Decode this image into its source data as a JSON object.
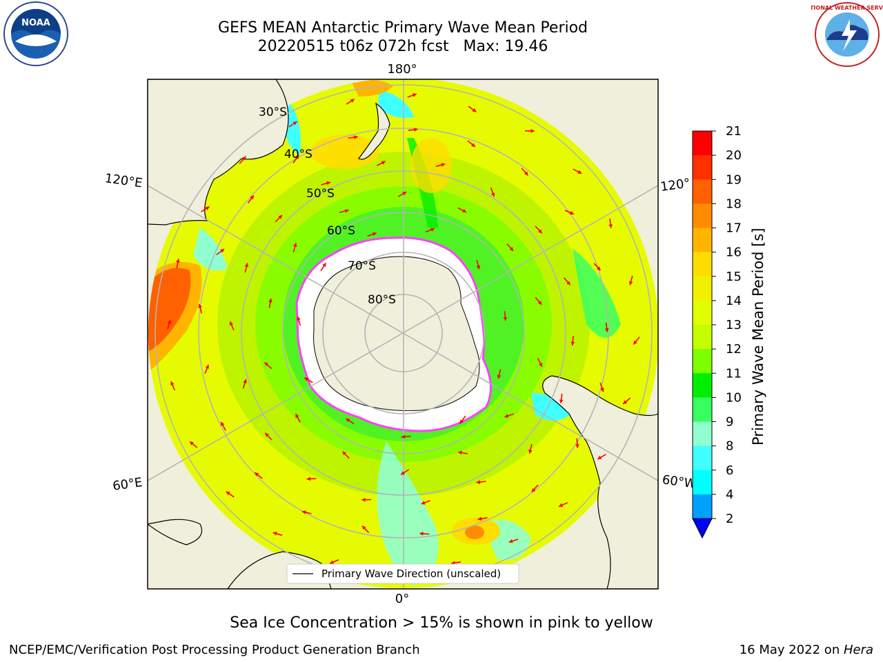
{
  "title_line1": "GEFS MEAN Antarctic Primary Wave Mean Period",
  "title_line2": "20220515 t06z 072h fcst   Max: 19.46",
  "caption": "Sea Ice Concentration > 15% is shown in pink to yellow",
  "footer_left": "NCEP/EMC/Verification Post Processing Product Generation Branch",
  "footer_right_date": "16 May 2022 on ",
  "footer_right_machine": "Hera",
  "legend_label": "Primary Wave Direction (unscaled)",
  "lon_labels": {
    "top": "180°",
    "bottom": "0°",
    "upper_left": "120°E",
    "upper_right": "120°",
    "lower_left": "60°E",
    "lower_right": "60°W"
  },
  "lat_labels": [
    "30°S",
    "40°S",
    "50°S",
    "60°S",
    "70°S",
    "80°S"
  ],
  "colorbar": {
    "label": "Primary Wave Mean Period [s]",
    "ticks": [
      "21",
      "20",
      "19",
      "18",
      "17",
      "16",
      "15",
      "14",
      "13",
      "12",
      "11",
      "10",
      "9",
      "8",
      "6",
      "4",
      "2"
    ],
    "colors": [
      "#ff0000",
      "#ff3000",
      "#ff6000",
      "#ff8c00",
      "#ffb400",
      "#ffdd00",
      "#f0f000",
      "#e0ff00",
      "#c4ff00",
      "#7cff00",
      "#00ee00",
      "#38ff60",
      "#90ffd0",
      "#40ffff",
      "#00ffff",
      "#00a0ff"
    ],
    "extend_color": "#0000ff"
  },
  "colors": {
    "land": "#efefdb",
    "ice": "#ffffff",
    "ice_edge": "#ff40ff",
    "arrow": "#ff0000",
    "grid": "#b4b4b4"
  },
  "logos": {
    "left": "NOAA",
    "right": "NATIONAL WEATHER SERVICE"
  }
}
